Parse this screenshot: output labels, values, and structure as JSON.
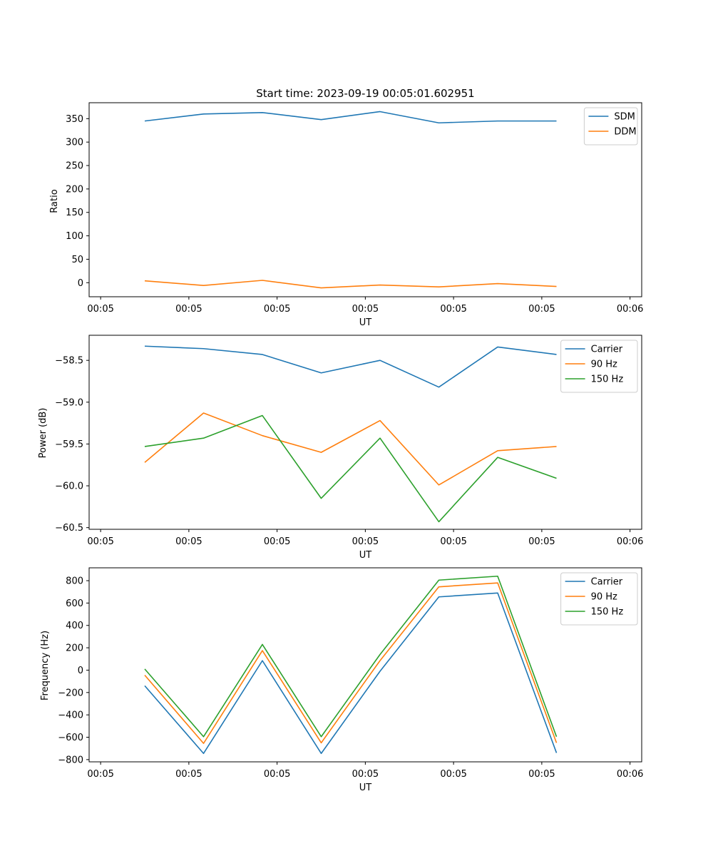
{
  "chart_data": [
    {
      "type": "line",
      "title": "Start time: 2023-09-19 00:05:01.602951",
      "xlabel": "UT",
      "ylabel": "Ratio",
      "xticks": [
        "00:05",
        "00:05",
        "00:05",
        "00:05",
        "00:05",
        "00:05",
        "00:06"
      ],
      "ylim": [
        -30,
        384
      ],
      "yticks": [
        0,
        50,
        100,
        150,
        200,
        250,
        300,
        350
      ],
      "legend_position": "upper right",
      "series": [
        {
          "name": "SDM",
          "color": "#1f77b4",
          "values": [
            345,
            360,
            363,
            348,
            365,
            341,
            345,
            345
          ]
        },
        {
          "name": "DDM",
          "color": "#ff7f0e",
          "values": [
            4,
            -6,
            5,
            -11,
            -5,
            -9,
            -2,
            -8
          ]
        }
      ]
    },
    {
      "type": "line",
      "title": "",
      "xlabel": "UT",
      "ylabel": "Power (dB)",
      "xticks": [
        "00:05",
        "00:05",
        "00:05",
        "00:05",
        "00:05",
        "00:05",
        "00:06"
      ],
      "ylim": [
        -60.52,
        -58.2
      ],
      "yticks": [
        -58.5,
        -59.0,
        -59.5,
        -60.0,
        -60.5
      ],
      "ytick_labels": [
        "−58.5",
        "−59.0",
        "−59.5",
        "−60.0",
        "−60.5"
      ],
      "legend_position": "upper right",
      "series": [
        {
          "name": "Carrier",
          "color": "#1f77b4",
          "values": [
            -58.33,
            -58.36,
            -58.43,
            -58.65,
            -58.5,
            -58.82,
            -58.34,
            -58.43
          ]
        },
        {
          "name": "90 Hz",
          "color": "#ff7f0e",
          "values": [
            -59.72,
            -59.13,
            -59.4,
            -59.6,
            -59.22,
            -59.99,
            -59.58,
            -59.53
          ]
        },
        {
          "name": "150 Hz",
          "color": "#2ca02c",
          "values": [
            -59.53,
            -59.43,
            -59.16,
            -60.15,
            -59.43,
            -60.43,
            -59.66,
            -59.91
          ]
        }
      ]
    },
    {
      "type": "line",
      "title": "",
      "xlabel": "UT",
      "ylabel": "Frequency (Hz)",
      "xticks": [
        "00:05",
        "00:05",
        "00:05",
        "00:05",
        "00:05",
        "00:05",
        "00:06"
      ],
      "ylim": [
        -820,
        915
      ],
      "yticks": [
        -800,
        -600,
        -400,
        -200,
        0,
        200,
        400,
        600,
        800
      ],
      "ytick_labels": [
        "−800",
        "−600",
        "−400",
        "−200",
        "0",
        "200",
        "400",
        "600",
        "800"
      ],
      "legend_position": "upper right",
      "series": [
        {
          "name": "Carrier",
          "color": "#1f77b4",
          "values": [
            -140,
            -745,
            85,
            -745,
            -10,
            655,
            690,
            -740
          ]
        },
        {
          "name": "90 Hz",
          "color": "#ff7f0e",
          "values": [
            -45,
            -655,
            175,
            -650,
            85,
            745,
            780,
            -650
          ]
        },
        {
          "name": "150 Hz",
          "color": "#2ca02c",
          "values": [
            10,
            -595,
            230,
            -595,
            140,
            805,
            840,
            -595
          ]
        }
      ]
    }
  ]
}
